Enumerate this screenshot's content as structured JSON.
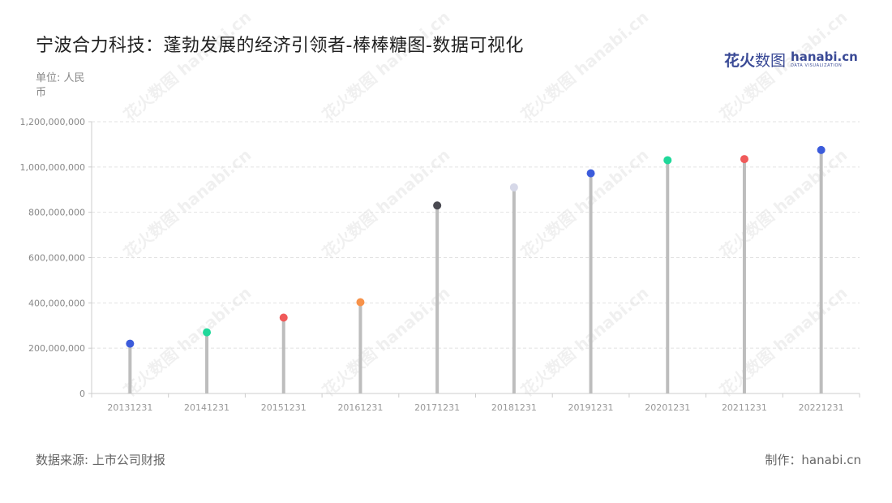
{
  "header": {
    "title": "宁波合力科技：蓬勃发展的经济引领者-棒棒糖图-数据可视化",
    "unit": "单位: 人民币"
  },
  "logo": {
    "cn_bold": "花火",
    "cn_thin": "数图",
    "en": "hanabi.cn",
    "sub": "DATA VISUALIZATION"
  },
  "watermark": {
    "text": "花火数图 hanabi.cn"
  },
  "footer": {
    "source": "数据来源: 上市公司财报",
    "credit": "制作：hanabi.cn"
  },
  "chart_data": {
    "type": "lollipop",
    "title": "宁波合力科技：蓬勃发展的经济引领者-棒棒糖图-数据可视化",
    "xlabel": "",
    "ylabel": "单位: 人民币",
    "ylim": [
      0,
      1200000000
    ],
    "yticks": [
      0,
      200000000,
      400000000,
      600000000,
      800000000,
      1000000000,
      1200000000
    ],
    "ytick_labels": [
      "0",
      "200,000,000",
      "400,000,000",
      "600,000,000",
      "800,000,000",
      "1,000,000,000",
      "1,200,000,000"
    ],
    "grid": true,
    "categories": [
      "20131231",
      "20141231",
      "20151231",
      "20161231",
      "20171231",
      "20181231",
      "20191231",
      "20201231",
      "20211231",
      "20221231"
    ],
    "values": [
      220000000,
      270000000,
      335000000,
      403000000,
      830000000,
      910000000,
      972000000,
      1030000000,
      1035000000,
      1075000000
    ],
    "colors": [
      "#3b5bdb",
      "#20d89a",
      "#f05a5a",
      "#f7924a",
      "#4a4a52",
      "#d6d8e8",
      "#3b5bdb",
      "#20d89a",
      "#f05a5a",
      "#3b5bdb"
    ],
    "stem_color": "#bdbdbd",
    "axis_color": "#cccccc",
    "grid_color": "#e2e2e2"
  }
}
